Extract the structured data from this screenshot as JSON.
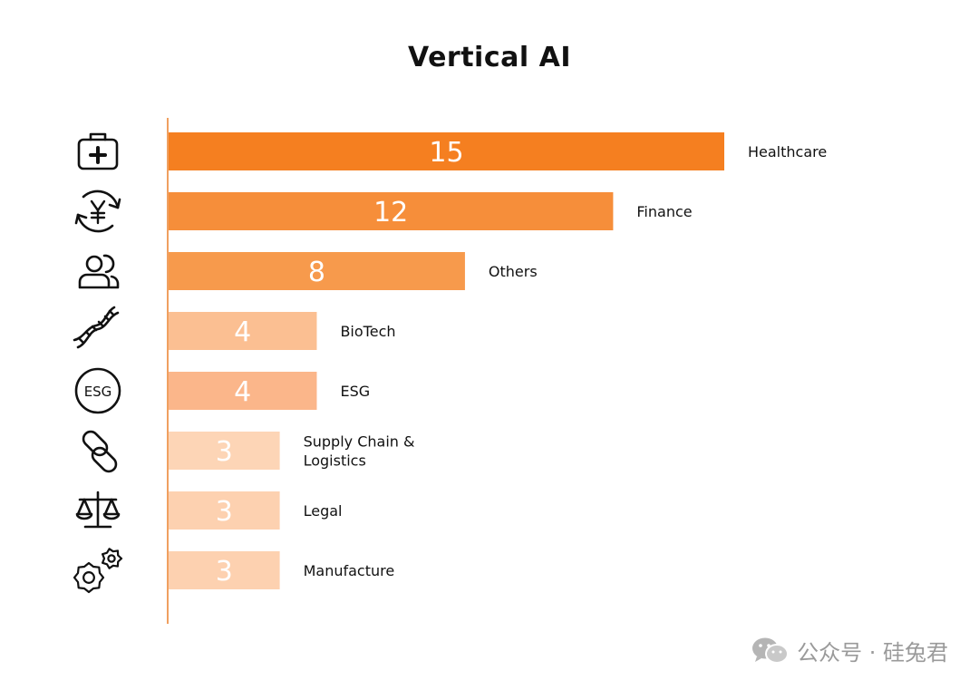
{
  "chart_data": {
    "type": "bar",
    "orientation": "horizontal",
    "title": "Vertical AI",
    "categories": [
      "Healthcare",
      "Finance",
      "Others",
      "BioTech",
      "ESG",
      "Supply Chain & Logistics",
      "Legal",
      "Manufacture"
    ],
    "label_lines": [
      [
        "Healthcare"
      ],
      [
        "Finance"
      ],
      [
        "Others"
      ],
      [
        "BioTech"
      ],
      [
        "ESG"
      ],
      [
        "Supply Chain &",
        "Logistics"
      ],
      [
        "Legal"
      ],
      [
        "Manufacture"
      ]
    ],
    "values": [
      15,
      12,
      8,
      4,
      4,
      3,
      3,
      3
    ],
    "bar_colors": [
      "#f57f20",
      "#f68e3a",
      "#f79a4c",
      "#fbbf92",
      "#fbb68a",
      "#fdd5b6",
      "#fdd1b0",
      "#fdd1b0"
    ],
    "icons": [
      "medical-kit-icon",
      "yen-exchange-icon",
      "people-icon",
      "dna-icon",
      "esg-icon",
      "chain-link-icon",
      "scales-icon",
      "gears-icon"
    ],
    "esg_icon_text": "ESG",
    "xlim": [
      0,
      15
    ],
    "axis_color": "#f0a060",
    "grid": false,
    "legend": "none"
  },
  "watermark": {
    "text": "公众号 · 硅兔君",
    "icon": "wechat-icon"
  }
}
